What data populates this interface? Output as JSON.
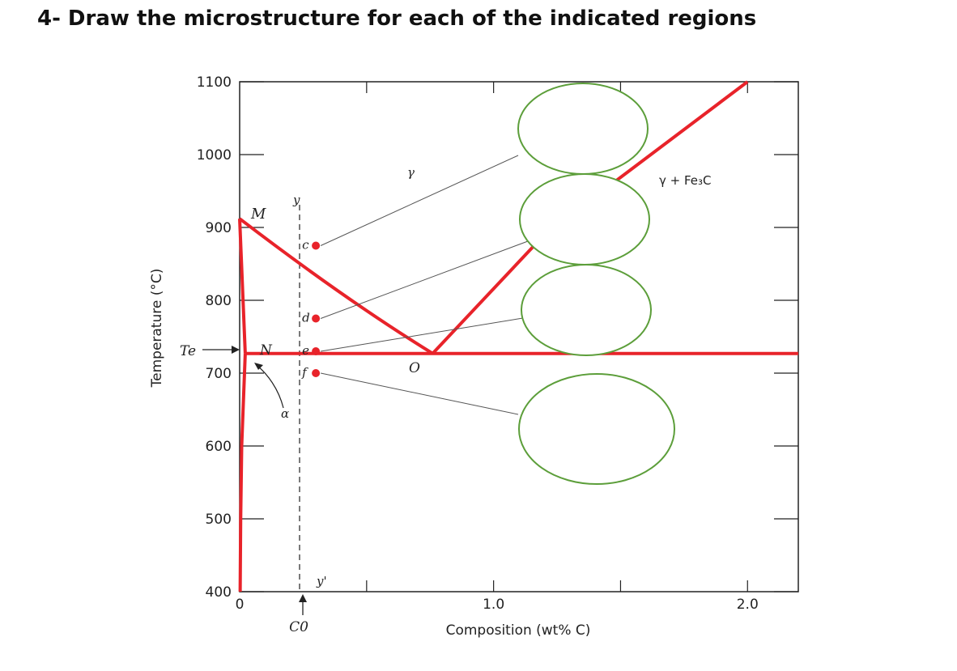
{
  "question": "4-  Draw the microstructure for each of the indicated regions",
  "colors": {
    "phase_boundary": "#e8232a",
    "answer_circle": "#5c9e3a",
    "axis": "#222222",
    "leader_line": "#555555"
  },
  "chart_data": {
    "type": "phase-diagram",
    "xlabel": "Composition (wt% C)",
    "ylabel": "Temperature (°C)",
    "xlim": [
      0,
      2.2
    ],
    "ylim": [
      400,
      1100
    ],
    "x_tick_labels": [
      {
        "value": 0,
        "label": "0"
      },
      {
        "value": 1.0,
        "label": "1.0"
      },
      {
        "value": 2.0,
        "label": "2.0"
      }
    ],
    "y_tick_labels": [
      {
        "value": 1100,
        "label": "1100"
      },
      {
        "value": 1000,
        "label": "1000"
      },
      {
        "value": 900,
        "label": "900"
      },
      {
        "value": 800,
        "label": "800"
      },
      {
        "value": 700,
        "label": "700"
      },
      {
        "value": 600,
        "label": "600"
      },
      {
        "value": 500,
        "label": "500"
      },
      {
        "value": 400,
        "label": "400"
      }
    ],
    "eutectoid_temperature_label": "Te",
    "eutectoid_temperature": 727,
    "composition_marker": {
      "label": "C0",
      "x": 0.3
    },
    "phase_boundaries": [
      {
        "name": "gamma-alpha",
        "points": [
          [
            0,
            912
          ],
          [
            0.3,
            815
          ],
          [
            0.55,
            755
          ],
          [
            0.76,
            727
          ]
        ]
      },
      {
        "name": "alpha-solvus",
        "points": [
          [
            0,
            912
          ],
          [
            0.022,
            727
          ]
        ]
      },
      {
        "name": "alpha-low",
        "points": [
          [
            0.022,
            727
          ],
          [
            0.008,
            600
          ],
          [
            0.004,
            500
          ],
          [
            0.002,
            400
          ]
        ]
      },
      {
        "name": "eutectoid",
        "points": [
          [
            0.022,
            727
          ],
          [
            2.2,
            727
          ]
        ]
      },
      {
        "name": "Acm",
        "points": [
          [
            0.76,
            727
          ],
          [
            1.2,
            890
          ],
          [
            2.0,
            1100
          ]
        ]
      }
    ],
    "points": [
      {
        "label": "c",
        "x": 0.3,
        "y": 875
      },
      {
        "label": "d",
        "x": 0.3,
        "y": 775
      },
      {
        "label": "e",
        "x": 0.3,
        "y": 730
      },
      {
        "label": "f",
        "x": 0.3,
        "y": 700
      }
    ],
    "labels": {
      "M": "M",
      "N": "N",
      "O": "O",
      "y_top": "y",
      "y_bottom": "y'",
      "alpha": "α",
      "gamma": "γ",
      "gamma_fe3c": "γ + Fe₃C"
    }
  }
}
